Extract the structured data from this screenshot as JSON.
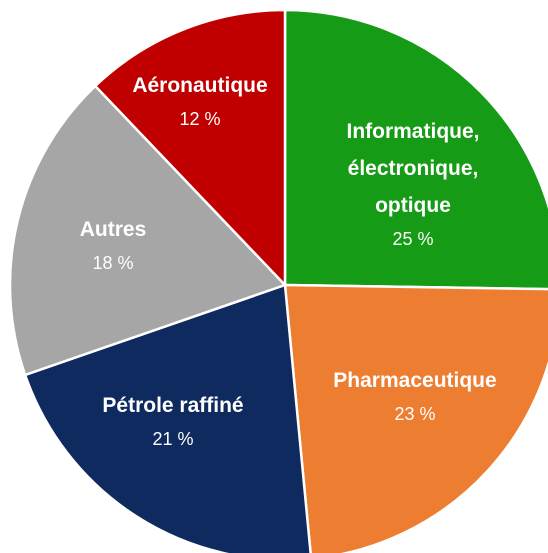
{
  "chart_data": {
    "type": "pie",
    "categories": [
      "Informatique, électronique, optique",
      "Pharmaceutique",
      "Pétrole raffiné",
      "Autres",
      "Aéronautique"
    ],
    "values": [
      25,
      23,
      21,
      18,
      12
    ],
    "value_labels": [
      "25 %",
      "23 %",
      "21 %",
      "18 %",
      "12 %"
    ],
    "colors": [
      "#169b16",
      "#ed7d31",
      "#0e2a5f",
      "#a6a6a6",
      "#c00000"
    ]
  }
}
